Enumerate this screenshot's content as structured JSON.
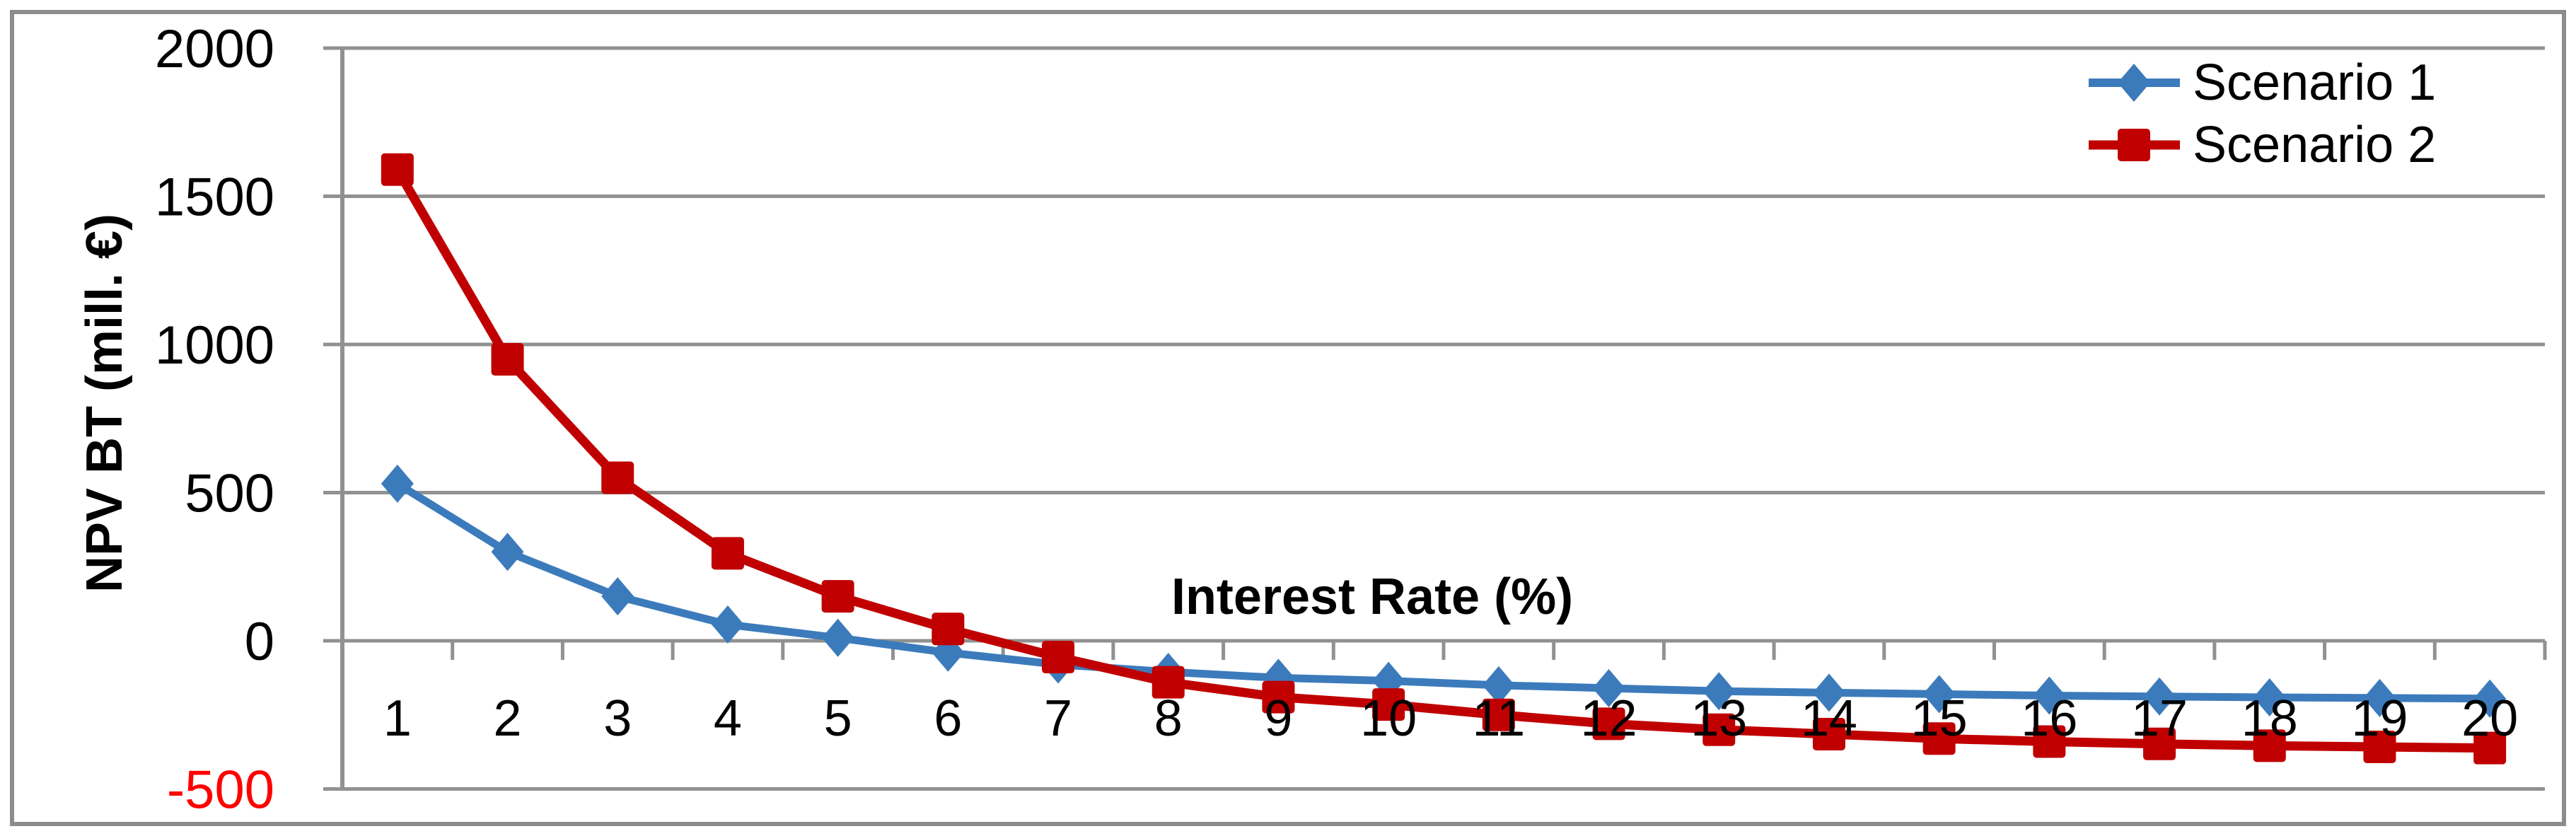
{
  "chart_data": {
    "type": "line",
    "title": "",
    "xlabel": "Interest Rate (%)",
    "ylabel": "NPV BT (mill. €)",
    "x": [
      1,
      2,
      3,
      4,
      5,
      6,
      7,
      8,
      9,
      10,
      11,
      12,
      13,
      14,
      15,
      16,
      17,
      18,
      19,
      20
    ],
    "x_tick_labels": [
      "1",
      "2",
      "3",
      "4",
      "5",
      "6",
      "7",
      "8",
      "9",
      "10",
      "11",
      "12",
      "13",
      "14",
      "15",
      "16",
      "17",
      "18",
      "19",
      "20"
    ],
    "y_ticks": [
      2000,
      1500,
      1000,
      500,
      0,
      -500
    ],
    "y_tick_labels": [
      "2000",
      "1500",
      "1000",
      "500",
      "0",
      "-500"
    ],
    "ylim": [
      -500,
      2000
    ],
    "grid": "horizontal",
    "legend_position": "top-right",
    "series": [
      {
        "name": "Scenario 1",
        "marker": "diamond",
        "color": "#3C7BBB",
        "values": [
          530,
          300,
          150,
          55,
          10,
          -40,
          -80,
          -105,
          -125,
          -135,
          -150,
          -160,
          -170,
          -175,
          -180,
          -185,
          -188,
          -191,
          -193,
          -195
        ]
      },
      {
        "name": "Scenario 2",
        "marker": "square",
        "color": "#C00000",
        "values": [
          1590,
          950,
          550,
          295,
          150,
          40,
          -55,
          -140,
          -190,
          -215,
          -250,
          -280,
          -300,
          -315,
          -330,
          -340,
          -348,
          -354,
          -358,
          -362
        ]
      }
    ],
    "colors": {
      "axis_and_grid": "#919191",
      "chart_border": "#8C8C8C",
      "tick_label": "#000000",
      "negative_tick_label": "#FF0000",
      "background": "#FFFFFF"
    }
  }
}
